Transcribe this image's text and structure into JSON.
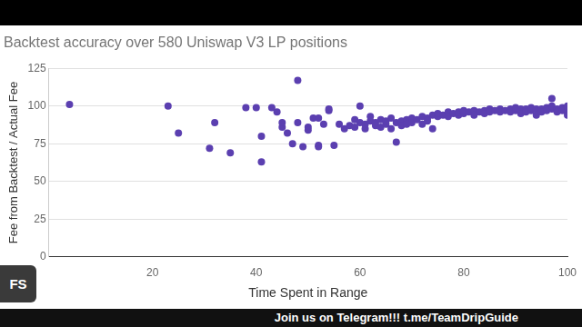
{
  "chart_data": {
    "type": "scatter",
    "title": "Backtest accuracy over 580 Uniswap V3 LP positions",
    "x_label": "Time Spent in Range",
    "y_label": "Fee from Backtest / Actual Fee",
    "x": [
      4,
      23,
      25,
      31,
      32,
      35,
      38,
      40,
      41,
      41,
      43,
      44,
      45,
      45,
      46,
      47,
      48,
      48,
      49,
      50,
      50,
      51,
      52,
      52,
      52,
      53,
      54,
      54,
      55,
      56,
      57,
      58,
      59,
      59,
      60,
      60,
      61,
      61,
      62,
      62,
      63,
      63,
      64,
      64,
      65,
      65,
      66,
      66,
      67,
      67,
      68,
      68,
      69,
      69,
      70,
      70,
      71,
      72,
      72,
      73,
      73,
      74,
      74,
      75,
      75,
      76,
      77,
      77,
      78,
      79,
      79,
      80,
      80,
      81,
      82,
      82,
      83,
      84,
      84,
      85,
      85,
      86,
      87,
      87,
      88,
      89,
      89,
      90,
      90,
      91,
      91,
      92,
      92,
      93,
      93,
      94,
      94,
      95,
      95,
      96,
      96,
      97,
      97,
      97,
      98,
      98,
      99,
      99,
      100,
      100,
      100,
      100
    ],
    "values": [
      101,
      100,
      82,
      72,
      89,
      69,
      99,
      99,
      80,
      63,
      99,
      96,
      86,
      89,
      82,
      75,
      117,
      89,
      73,
      84,
      86,
      92,
      92,
      74,
      73,
      88,
      97,
      98,
      74,
      88,
      85,
      87,
      91,
      86,
      89,
      100,
      85,
      88,
      90,
      93,
      87,
      89,
      86,
      91,
      88,
      90,
      85,
      92,
      76,
      89,
      90,
      87,
      91,
      88,
      92,
      89,
      91,
      93,
      88,
      92,
      90,
      94,
      85,
      93,
      95,
      94,
      96,
      93,
      95,
      94,
      96,
      95,
      97,
      96,
      97,
      94,
      96,
      97,
      95,
      98,
      96,
      97,
      98,
      96,
      97,
      98,
      96,
      97,
      99,
      98,
      95,
      98,
      96,
      97,
      99,
      98,
      94,
      98,
      96,
      99,
      97,
      98,
      100,
      105,
      98,
      96,
      99,
      97,
      98,
      96,
      100,
      94
    ],
    "color": "#5b3fb0",
    "marker": "circle",
    "xlim": [
      0,
      100
    ],
    "xticks": [
      20,
      40,
      60,
      80,
      100
    ],
    "ylim": [
      0,
      125
    ],
    "yticks": [
      0,
      25,
      50,
      75,
      100,
      125
    ],
    "grid": true,
    "annotations": [
      "FS",
      "Join us on Telegram!!! t.me/TeamDripGuide"
    ]
  }
}
